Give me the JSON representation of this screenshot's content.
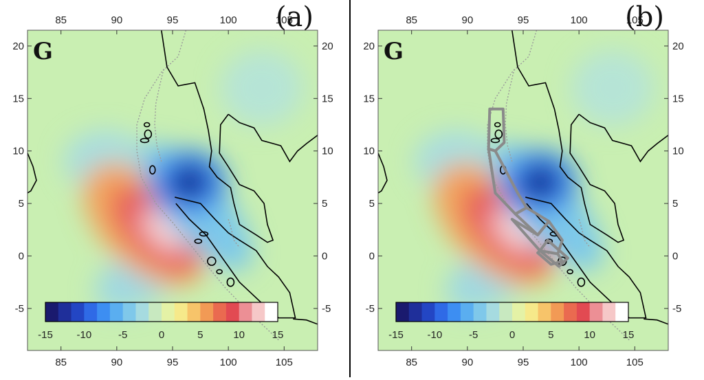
{
  "panels": [
    {
      "id": "a",
      "panel_label": "(a)",
      "component_label": "G",
      "x_ticks": [
        "85",
        "90",
        "95",
        "100",
        "105"
      ],
      "y_ticks": [
        "20",
        "15",
        "10",
        "5",
        "0",
        "-5"
      ],
      "colorbar_ticks": [
        "-15",
        "-10",
        "-5",
        "0",
        "5",
        "10",
        "15"
      ],
      "rupture_segments": false
    },
    {
      "id": "b",
      "panel_label": "(b)",
      "component_label": "G",
      "x_ticks": [
        "85",
        "90",
        "95",
        "100",
        "105"
      ],
      "y_ticks": [
        "20",
        "15",
        "10",
        "5",
        "0",
        "-5"
      ],
      "colorbar_ticks": [
        "-15",
        "-10",
        "-5",
        "0",
        "5",
        "10",
        "15"
      ],
      "rupture_segments": true
    }
  ],
  "colorscale": [
    "#1a1a6e",
    "#1f2f9a",
    "#2346c4",
    "#2f6ae6",
    "#3d8ef2",
    "#5aaef0",
    "#7fc8ea",
    "#a6dbe0",
    "#c8e9c0",
    "#e4f2a6",
    "#f6e98a",
    "#f7c46a",
    "#f29a55",
    "#ea6a50",
    "#e24a52",
    "#ec8f95",
    "#f6c8c8",
    "#ffffff"
  ],
  "colors": {
    "background_field": "#c9efb2",
    "trench": "#9a9a9a",
    "coast": "#000000",
    "segments": "#8a8a8a"
  }
}
